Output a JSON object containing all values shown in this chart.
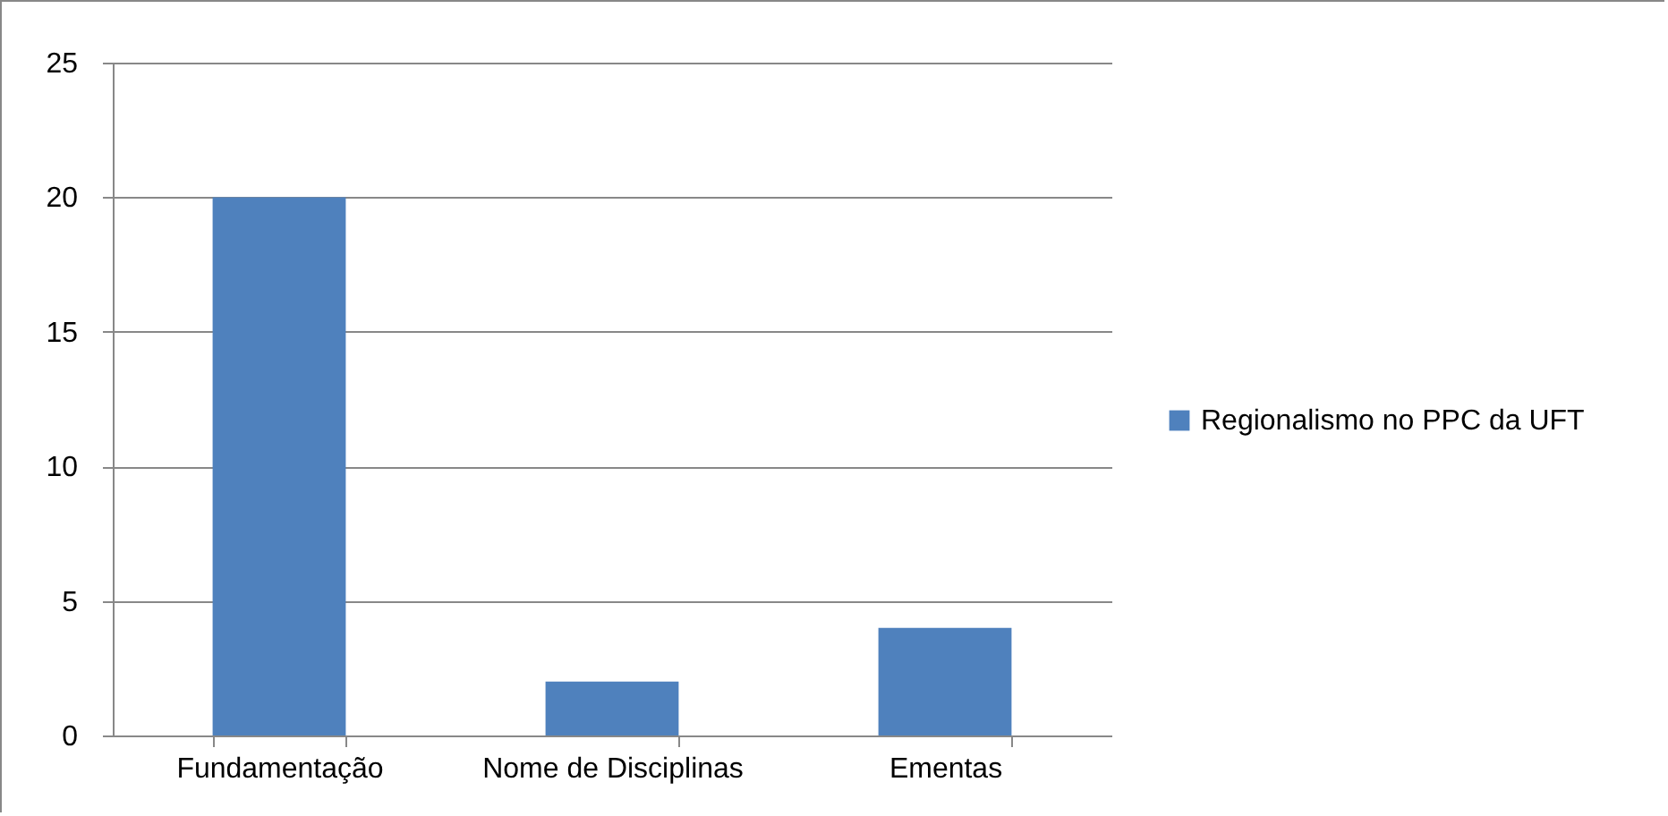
{
  "chart_data": {
    "type": "bar",
    "categories": [
      "Fundamentação",
      "Nome de Disciplinas",
      "Ementas"
    ],
    "series": [
      {
        "name": "Regionalismo no PPC da UFT",
        "color": "#4f81bd",
        "values": [
          20,
          2,
          4
        ]
      }
    ],
    "ylim": [
      0,
      25
    ],
    "yticks": [
      0,
      5,
      10,
      15,
      20,
      25
    ],
    "grid": "y",
    "legend": "right"
  }
}
